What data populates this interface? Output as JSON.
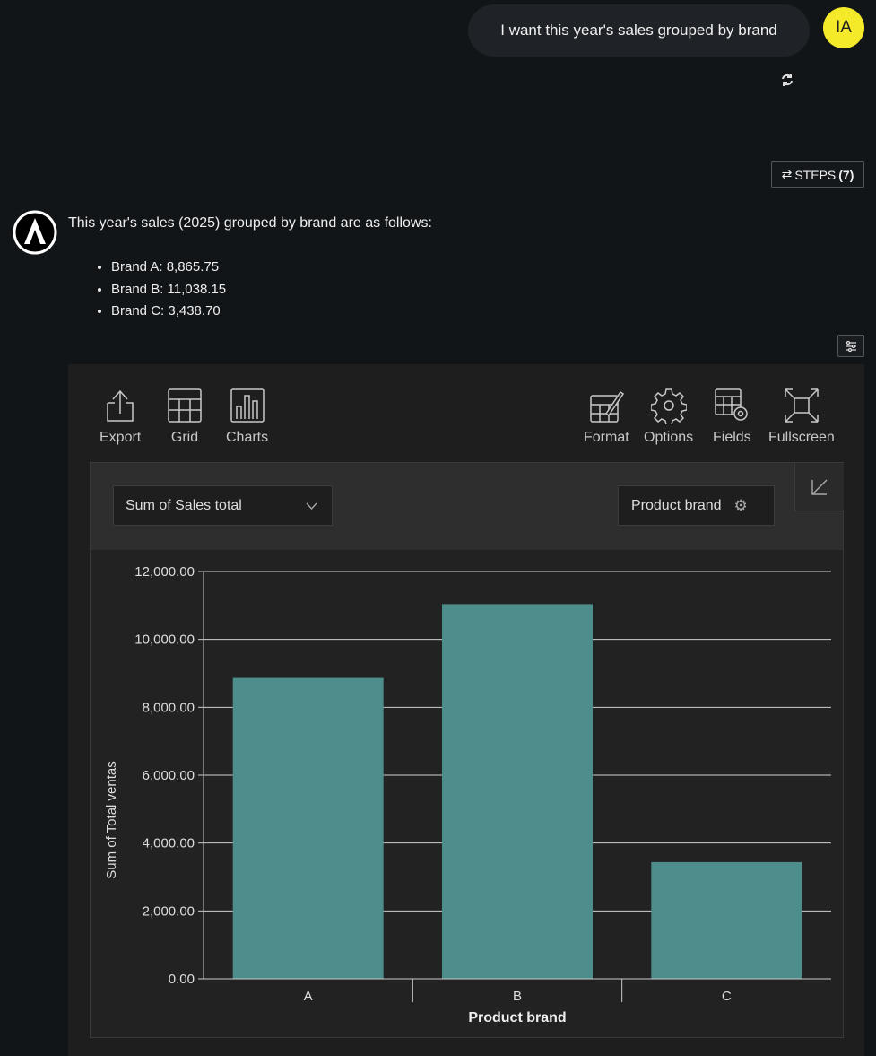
{
  "user_message": {
    "text": "I want this year's sales grouped by brand",
    "avatar_initials": "IA"
  },
  "steps_button": {
    "label": "STEPS",
    "count": "(7)"
  },
  "assistant": {
    "intro": "This year's sales (2025) grouped by brand are as follows:",
    "items": [
      "Brand A: 8,865.75",
      "Brand B: 11,038.15",
      "Brand C: 3,438.70"
    ]
  },
  "toolbar": {
    "export": "Export",
    "grid": "Grid",
    "charts": "Charts",
    "format": "Format",
    "options": "Options",
    "fields": "Fields",
    "fullscreen": "Fullscreen"
  },
  "chart_controls": {
    "measure": "Sum of Sales total",
    "row_field": "Product brand"
  },
  "colors": {
    "bar": "#4d8e8d",
    "accent_avatar": "#f5ea2a"
  },
  "chart_data": {
    "type": "bar",
    "categories": [
      "A",
      "B",
      "C"
    ],
    "values": [
      8865.75,
      11038.15,
      3438.7
    ],
    "xlabel": "Product brand",
    "ylabel": "Sum of Total ventas",
    "ylim": [
      0,
      12000
    ],
    "yticks": [
      "0.00",
      "2,000.00",
      "4,000.00",
      "6,000.00",
      "8,000.00",
      "10,000.00",
      "12,000.00"
    ],
    "grid": true
  }
}
